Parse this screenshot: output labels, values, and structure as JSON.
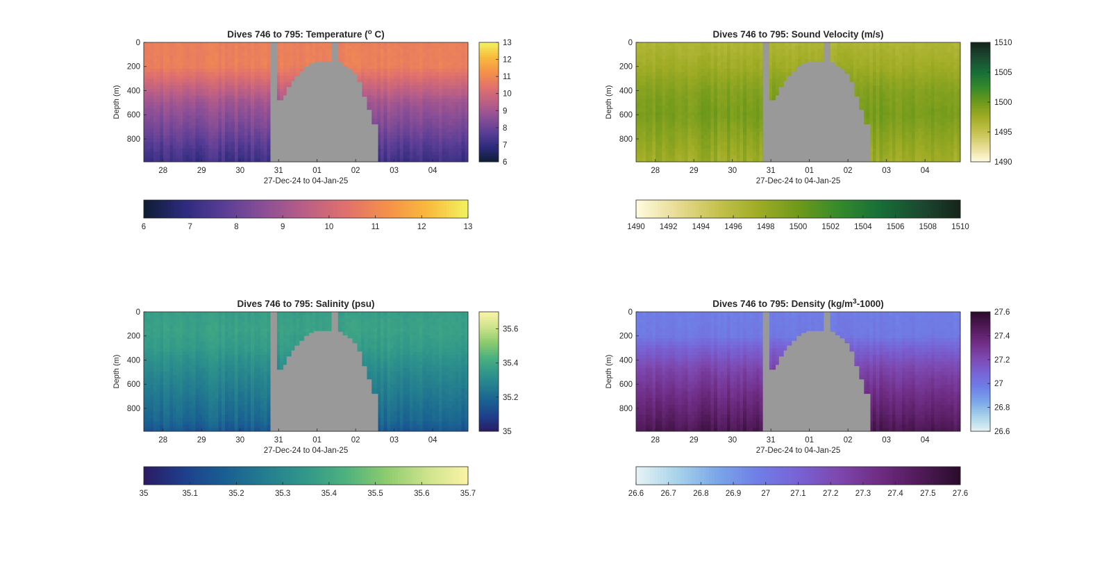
{
  "figure": {
    "background": "#ffffff",
    "gap_color": "#999999"
  },
  "chart_data": [
    {
      "type": "heatmap",
      "title": "Dives 746 to 795: Temperature (",
      "title_sup": "o",
      "title_tail": " C)",
      "xlabel": "27-Dec-24 to 04-Jan-25",
      "ylabel": "Depth (m)",
      "x_tick_labels": [
        "28",
        "29",
        "30",
        "31",
        "01",
        "02",
        "03",
        "04"
      ],
      "x_tick_dates": [
        "2024-12-28",
        "2024-12-29",
        "2024-12-30",
        "2024-12-31",
        "2025-01-01",
        "2025-01-02",
        "2025-01-03",
        "2025-01-04"
      ],
      "xlim": [
        "2024-12-27 12:00",
        "2025-01-04 22:00"
      ],
      "y_ticks": [
        0,
        200,
        400,
        600,
        800
      ],
      "ylim": [
        0,
        990
      ],
      "y_reversed": true,
      "colormap": [
        "#0d1d33",
        "#2d2a7d",
        "#5b3e96",
        "#8c4f96",
        "#bb5f86",
        "#e0716c",
        "#f5904a",
        "#f9b93d",
        "#f2f25f"
      ],
      "clim": [
        6,
        13
      ],
      "colorbar_ticks": [
        6,
        7,
        8,
        9,
        10,
        11,
        12,
        13
      ],
      "colorbar_tick_labels": [
        "6",
        "7",
        "8",
        "9",
        "10",
        "11",
        "12",
        "13"
      ],
      "profile": [
        [
          0,
          10.8
        ],
        [
          200,
          10.8
        ],
        [
          300,
          10.2
        ],
        [
          500,
          9.0
        ],
        [
          700,
          8.3
        ],
        [
          900,
          7.5
        ],
        [
          990,
          7.2
        ]
      ]
    },
    {
      "type": "heatmap",
      "title": "Dives 746 to 795: Sound Velocity (m/s)",
      "xlabel": "27-Dec-24 to 04-Jan-25",
      "ylabel": "Depth (m)",
      "x_tick_labels": [
        "28",
        "29",
        "30",
        "31",
        "01",
        "02",
        "03",
        "04"
      ],
      "x_tick_dates": [
        "2024-12-28",
        "2024-12-29",
        "2024-12-30",
        "2024-12-31",
        "2025-01-01",
        "2025-01-02",
        "2025-01-03",
        "2025-01-04"
      ],
      "xlim": [
        "2024-12-27 12:00",
        "2025-01-04 22:00"
      ],
      "y_ticks": [
        0,
        200,
        400,
        600,
        800
      ],
      "ylim": [
        0,
        990
      ],
      "y_reversed": true,
      "colormap": [
        "#fffbe0",
        "#e8dc94",
        "#c5c24f",
        "#a0ac25",
        "#6f991b",
        "#358a2a",
        "#176f37",
        "#1b4a30",
        "#142419"
      ],
      "clim": [
        1490,
        1510
      ],
      "colorbar_ticks": [
        1490,
        1492,
        1494,
        1496,
        1498,
        1500,
        1502,
        1504,
        1506,
        1508,
        1510
      ],
      "colorbar_tick_labels": [
        "1490",
        "1492",
        "1494",
        "1496",
        "1498",
        "1500",
        "1502",
        "1504",
        "1506",
        "1508",
        "1510"
      ],
      "side_colorbar_ticks": [
        1490,
        1495,
        1500,
        1505,
        1510
      ],
      "side_colorbar_tick_labels": [
        "1490",
        "1495",
        "1500",
        "1505",
        "1510"
      ],
      "profile": [
        [
          0,
          1496.5
        ],
        [
          200,
          1497.5
        ],
        [
          400,
          1499.0
        ],
        [
          600,
          1499.6
        ],
        [
          800,
          1498.5
        ],
        [
          990,
          1497.5
        ]
      ]
    },
    {
      "type": "heatmap",
      "title": "Dives 746 to 795: Salinity (psu)",
      "xlabel": "27-Dec-24 to 04-Jan-25",
      "ylabel": "Depth (m)",
      "x_tick_labels": [
        "28",
        "29",
        "30",
        "31",
        "01",
        "02",
        "03",
        "04"
      ],
      "x_tick_dates": [
        "2024-12-28",
        "2024-12-29",
        "2024-12-30",
        "2024-12-31",
        "2025-01-01",
        "2025-01-02",
        "2025-01-03",
        "2025-01-04"
      ],
      "xlim": [
        "2024-12-27 12:00",
        "2025-01-04 22:00"
      ],
      "y_ticks": [
        0,
        200,
        400,
        600,
        800
      ],
      "ylim": [
        0,
        990
      ],
      "y_reversed": true,
      "colormap": [
        "#2a1a63",
        "#1e3f8c",
        "#195f92",
        "#237d8f",
        "#31988a",
        "#4eb27e",
        "#8ecc6e",
        "#cde38c",
        "#fbf3a6"
      ],
      "clim": [
        35,
        35.7
      ],
      "colorbar_ticks": [
        35,
        35.1,
        35.2,
        35.3,
        35.4,
        35.5,
        35.6,
        35.7
      ],
      "colorbar_tick_labels": [
        "35",
        "35.1",
        "35.2",
        "35.3",
        "35.4",
        "35.5",
        "35.6",
        "35.7"
      ],
      "side_colorbar_ticks": [
        35,
        35.2,
        35.4,
        35.6
      ],
      "side_colorbar_tick_labels": [
        "35",
        "35.2",
        "35.4",
        "35.6"
      ],
      "profile": [
        [
          0,
          35.37
        ],
        [
          150,
          35.38
        ],
        [
          300,
          35.36
        ],
        [
          500,
          35.3
        ],
        [
          700,
          35.25
        ],
        [
          900,
          35.2
        ],
        [
          990,
          35.15
        ]
      ]
    },
    {
      "type": "heatmap",
      "title": "Dives 746 to 795: Density (kg/m",
      "title_sup": "3",
      "title_tail": "-1000)",
      "xlabel": "27-Dec-24 to 04-Jan-25",
      "ylabel": "Depth (m)",
      "x_tick_labels": [
        "28",
        "29",
        "30",
        "31",
        "01",
        "02",
        "03",
        "04"
      ],
      "x_tick_dates": [
        "2024-12-28",
        "2024-12-29",
        "2024-12-30",
        "2024-12-31",
        "2025-01-01",
        "2025-01-02",
        "2025-01-03",
        "2025-01-04"
      ],
      "xlim": [
        "2024-12-27 12:00",
        "2025-01-04 22:00"
      ],
      "y_ticks": [
        0,
        200,
        400,
        600,
        800
      ],
      "ylim": [
        0,
        990
      ],
      "y_reversed": true,
      "colormap": [
        "#e6f3f5",
        "#a9d3ea",
        "#7aa7e8",
        "#6f7ee6",
        "#7862d4",
        "#7d47ae",
        "#6e2c83",
        "#501a58",
        "#2a0c2c"
      ],
      "clim": [
        26.6,
        27.6
      ],
      "colorbar_ticks": [
        26.6,
        26.7,
        26.8,
        26.9,
        27,
        27.1,
        27.2,
        27.3,
        27.4,
        27.5,
        27.6
      ],
      "colorbar_tick_labels": [
        "26.6",
        "26.7",
        "26.8",
        "26.9",
        "27",
        "27.1",
        "27.2",
        "27.3",
        "27.4",
        "27.5",
        "27.6"
      ],
      "side_colorbar_ticks": [
        26.6,
        26.8,
        27,
        27.2,
        27.4,
        27.6
      ],
      "side_colorbar_tick_labels": [
        "26.6",
        "26.8",
        "27",
        "27.2",
        "27.4",
        "27.6"
      ],
      "profile": [
        [
          0,
          26.98
        ],
        [
          200,
          27.0
        ],
        [
          300,
          27.1
        ],
        [
          500,
          27.25
        ],
        [
          700,
          27.35
        ],
        [
          900,
          27.45
        ],
        [
          990,
          27.5
        ]
      ]
    }
  ],
  "data_gap": {
    "start": "2024-12-30 19:00",
    "end": "2025-01-02 14:00",
    "surface_gap": [
      "2024-12-30 19:00",
      "2024-12-30 23:00"
    ],
    "midgap_surface": [
      "2025-01-01 09:00",
      "2025-01-01 13:00"
    ],
    "max_depth_reached": [
      [
        "2024-12-30 23:00",
        480
      ],
      [
        "2024-12-31 03:00",
        440
      ],
      [
        "2024-12-31 05:00",
        370
      ],
      [
        "2024-12-31 08:00",
        320
      ],
      [
        "2024-12-31 10:00",
        280
      ],
      [
        "2024-12-31 13:00",
        240
      ],
      [
        "2024-12-31 16:00",
        200
      ],
      [
        "2024-12-31 19:00",
        175
      ],
      [
        "2024-12-31 22:00",
        160
      ],
      [
        "2025-01-01 09:00",
        155
      ],
      [
        "2025-01-01 13:00",
        165
      ],
      [
        "2025-01-01 16:00",
        195
      ],
      [
        "2025-01-01 19:00",
        220
      ],
      [
        "2025-01-01 22:00",
        260
      ],
      [
        "2025-01-02 01:00",
        330
      ],
      [
        "2025-01-02 04:00",
        450
      ],
      [
        "2025-01-02 07:00",
        560
      ],
      [
        "2025-01-02 10:00",
        680
      ],
      [
        "2025-01-02 14:00",
        990
      ]
    ]
  }
}
